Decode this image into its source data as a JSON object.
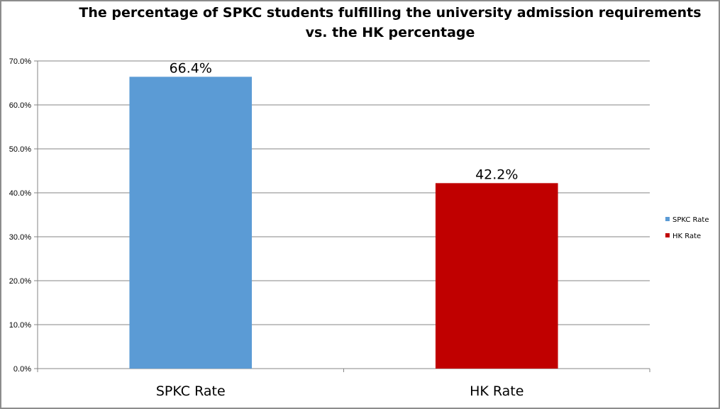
{
  "chart_data": {
    "type": "bar",
    "title": "The percentage of SPKC students fulfilling the university admission requirements vs. the HK percentage",
    "title_lines": [
      "The percentage of SPKC students fulfilling the university admission requirements",
      "vs. the HK percentage"
    ],
    "categories": [
      "SPKC Rate",
      "HK Rate"
    ],
    "values": [
      66.4,
      42.2
    ],
    "data_labels": [
      "66.4%",
      "42.2%"
    ],
    "bar_colors": [
      "#5b9bd5",
      "#c00000"
    ],
    "ylim": [
      0,
      70
    ],
    "yticks": [
      0,
      10,
      20,
      30,
      40,
      50,
      60,
      70
    ],
    "ytick_labels": [
      "0.0%",
      "10.0%",
      "20.0%",
      "30.0%",
      "40.0%",
      "50.0%",
      "60.0%",
      "70.0%"
    ],
    "grid": true,
    "legend": {
      "position": "right",
      "entries": [
        {
          "label": "SPKC Rate",
          "color": "#5b9bd5"
        },
        {
          "label": "HK Rate",
          "color": "#c00000"
        }
      ]
    },
    "xlabel": "",
    "ylabel": ""
  }
}
